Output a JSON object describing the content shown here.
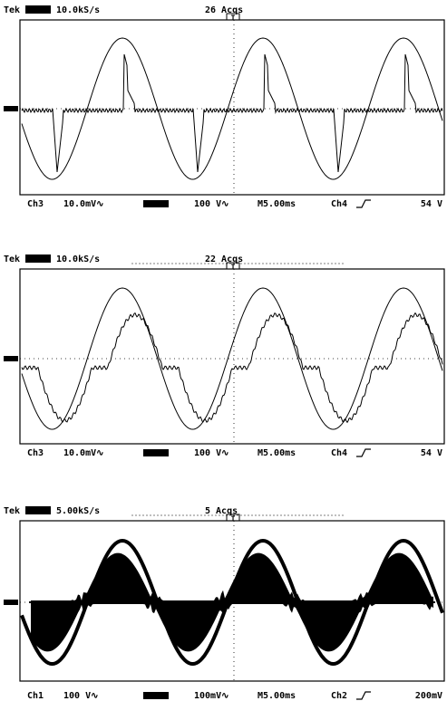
{
  "panels": [
    {
      "header": {
        "brand": "Tek",
        "rate": "10.0kS/s",
        "acqs": "26 Acqs",
        "trigger": "T"
      },
      "footer": {
        "ch_a": "Ch3",
        "scale_a": "10.0mV∿",
        "scale_b": "100 V∿",
        "time": "M5.00ms",
        "trig_ch": "Ch4",
        "trig_level": "54 V"
      }
    },
    {
      "header": {
        "brand": "Tek",
        "rate": "10.0kS/s",
        "acqs": "22 Acqs",
        "trigger": "T"
      },
      "footer": {
        "ch_a": "Ch3",
        "scale_a": "10.0mV∿",
        "scale_b": "100 V∿",
        "time": "M5.00ms",
        "trig_ch": "Ch4",
        "trig_level": "54 V"
      }
    },
    {
      "header": {
        "brand": "Tek",
        "rate": "5.00kS/s",
        "acqs": "5 Acqs",
        "trigger": "T"
      },
      "footer": {
        "ch_a": "Ch1",
        "scale_a": "100 V∿",
        "scale_b": "100mV∿",
        "time": "M5.00ms",
        "trig_ch": "Ch2",
        "trig_level": "200mV"
      }
    }
  ]
}
